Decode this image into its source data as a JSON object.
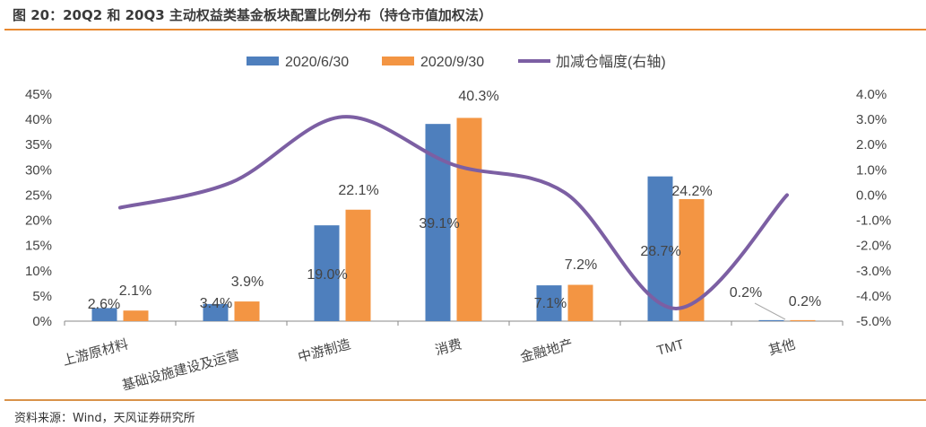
{
  "title": "图 20：20Q2 和 20Q3 主动权益类基金板块配置比例分布（持仓市值加权法）",
  "source": "资料来源：Wind，天风证券研究所",
  "chart_data": {
    "type": "bar",
    "categories": [
      "上游原材料",
      "基础设施建设及运营",
      "中游制造",
      "消费",
      "金融地产",
      "TMT",
      "其他"
    ],
    "series": [
      {
        "name": "2020/6/30",
        "axis": "left",
        "type": "bar",
        "color": "#4e7fbd",
        "values": [
          2.6,
          3.4,
          19.0,
          39.1,
          7.1,
          28.7,
          0.2
        ],
        "labels": [
          "2.6%",
          "3.4%",
          "19.0%",
          "39.1%",
          "7.1%",
          "28.7%",
          "0.2%"
        ]
      },
      {
        "name": "2020/9/30",
        "axis": "left",
        "type": "bar",
        "color": "#f39543",
        "values": [
          2.1,
          3.9,
          22.1,
          40.3,
          7.2,
          24.2,
          0.2
        ],
        "labels": [
          "2.1%",
          "3.9%",
          "22.1%",
          "40.3%",
          "7.2%",
          "24.2%",
          "0.2%"
        ]
      },
      {
        "name": "加减仓幅度(右轴)",
        "axis": "right",
        "type": "line",
        "color": "#7c5fa3",
        "values": [
          -0.5,
          0.5,
          3.1,
          1.2,
          0.1,
          -4.5,
          0.0
        ]
      }
    ],
    "left_axis": {
      "min": 0,
      "max": 45,
      "step": 5,
      "ticks": [
        "0%",
        "5%",
        "10%",
        "15%",
        "20%",
        "25%",
        "30%",
        "35%",
        "40%",
        "45%"
      ]
    },
    "right_axis": {
      "min": -5,
      "max": 4,
      "step": 1,
      "ticks": [
        "-5.0%",
        "-4.0%",
        "-3.0%",
        "-2.0%",
        "-1.0%",
        "0.0%",
        "1.0%",
        "2.0%",
        "3.0%",
        "4.0%"
      ]
    },
    "legend": "top",
    "grid": false
  }
}
